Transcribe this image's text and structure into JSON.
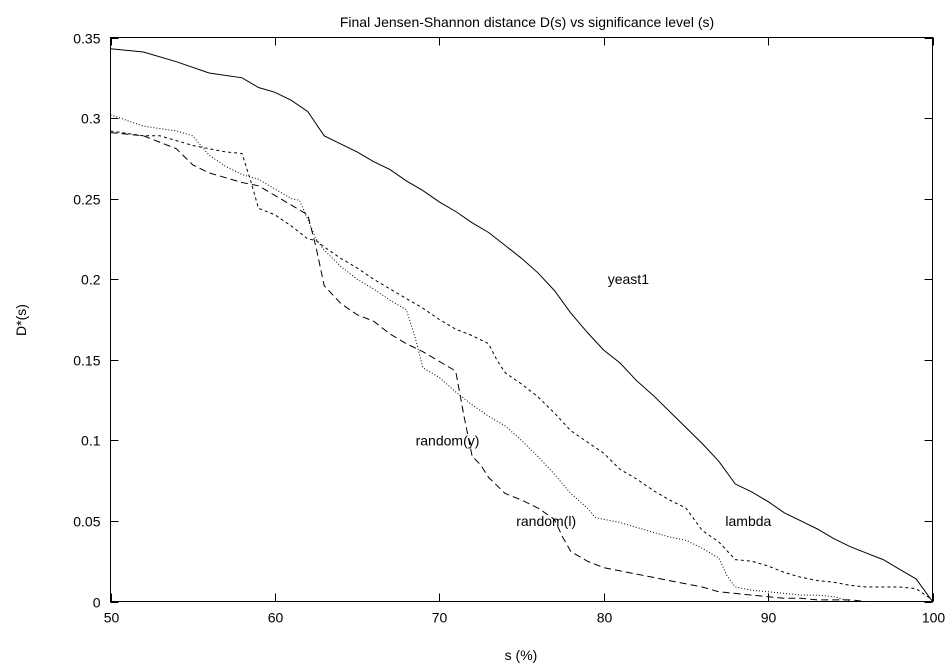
{
  "chart_data": {
    "type": "line",
    "title": "Final Jensen-Shannon distance D(s) vs significance level (s)",
    "xlabel": "s (%)",
    "ylabel": "D*(s)",
    "xlim": [
      50,
      100
    ],
    "ylim": [
      0,
      0.35
    ],
    "xticks": [
      50,
      60,
      70,
      80,
      90,
      100
    ],
    "yticks": [
      0,
      0.05,
      0.1,
      0.15,
      0.2,
      0.25,
      0.3,
      0.35
    ],
    "xtick_labels": [
      "50",
      "60",
      "70",
      "80",
      "90",
      "100"
    ],
    "ytick_labels": [
      "0",
      "0.05",
      "0.1",
      "0.15",
      "0.2",
      "0.25",
      "0.3",
      "0.35"
    ],
    "grid": false,
    "legend": "none",
    "series": [
      {
        "name": "yeast1",
        "dash": "solid",
        "label_at": [
          81.5,
          0.2
        ],
        "x": [
          50,
          52,
          54,
          56,
          58,
          59,
          60,
          61,
          62,
          63,
          64,
          65,
          66,
          67,
          68,
          69,
          70,
          71,
          72,
          73,
          74,
          75,
          76,
          77,
          78,
          79,
          80,
          81,
          82,
          83,
          84,
          85,
          86,
          87,
          88,
          89,
          90,
          91,
          92,
          93,
          94,
          95,
          96,
          97,
          98,
          99,
          100
        ],
        "y": [
          0.343,
          0.341,
          0.335,
          0.328,
          0.325,
          0.319,
          0.316,
          0.311,
          0.304,
          0.289,
          0.284,
          0.279,
          0.273,
          0.268,
          0.261,
          0.255,
          0.248,
          0.242,
          0.235,
          0.229,
          0.221,
          0.213,
          0.204,
          0.193,
          0.179,
          0.167,
          0.156,
          0.148,
          0.137,
          0.128,
          0.118,
          0.108,
          0.098,
          0.087,
          0.073,
          0.068,
          0.062,
          0.055,
          0.05,
          0.045,
          0.039,
          0.034,
          0.03,
          0.026,
          0.02,
          0.014,
          0.0
        ]
      },
      {
        "name": "lambda",
        "dash": "short",
        "label_at": [
          88.8,
          0.05
        ],
        "x": [
          50,
          52,
          53,
          54,
          55,
          56,
          57,
          58,
          58.5,
          59,
          60,
          61,
          62,
          62.5,
          63,
          64,
          65,
          66,
          67,
          68,
          69,
          70,
          71,
          72,
          73,
          73.5,
          74,
          75,
          76,
          77,
          78,
          79,
          80,
          81,
          82,
          83,
          84,
          85,
          86,
          87,
          88,
          89,
          90,
          91,
          92,
          93,
          94,
          95,
          96,
          97,
          98,
          99,
          100
        ],
        "y": [
          0.292,
          0.289,
          0.289,
          0.286,
          0.283,
          0.281,
          0.279,
          0.278,
          0.262,
          0.244,
          0.24,
          0.233,
          0.225,
          0.224,
          0.22,
          0.213,
          0.207,
          0.2,
          0.194,
          0.188,
          0.182,
          0.175,
          0.169,
          0.165,
          0.16,
          0.15,
          0.142,
          0.135,
          0.127,
          0.117,
          0.106,
          0.099,
          0.092,
          0.082,
          0.076,
          0.069,
          0.063,
          0.058,
          0.044,
          0.037,
          0.026,
          0.025,
          0.022,
          0.018,
          0.015,
          0.013,
          0.012,
          0.01,
          0.009,
          0.009,
          0.009,
          0.008,
          0.001
        ]
      },
      {
        "name": "random(y)",
        "dash": "dot",
        "label_at": [
          70.5,
          0.1
        ],
        "x": [
          50,
          52,
          54,
          55,
          56,
          57,
          58,
          59,
          60,
          61,
          61.5,
          62,
          62.5,
          63,
          64,
          65,
          66,
          67,
          68,
          68.5,
          69,
          70,
          71,
          72,
          73,
          74,
          75,
          76,
          77,
          78,
          79,
          79.5,
          80,
          81,
          82,
          83,
          84,
          85,
          86,
          87,
          87.5,
          88,
          89,
          90,
          91,
          92,
          93,
          94,
          95,
          96,
          97,
          98,
          99,
          100
        ],
        "y": [
          0.302,
          0.295,
          0.292,
          0.289,
          0.277,
          0.27,
          0.265,
          0.262,
          0.256,
          0.25,
          0.249,
          0.237,
          0.225,
          0.218,
          0.208,
          0.2,
          0.194,
          0.187,
          0.181,
          0.165,
          0.145,
          0.139,
          0.13,
          0.122,
          0.115,
          0.109,
          0.1,
          0.09,
          0.079,
          0.067,
          0.058,
          0.052,
          0.051,
          0.049,
          0.046,
          0.043,
          0.04,
          0.038,
          0.033,
          0.027,
          0.016,
          0.009,
          0.007,
          0.006,
          0.005,
          0.004,
          0.004,
          0.003,
          0.0,
          0.0,
          0.0,
          0.0,
          0.0,
          0.0
        ]
      },
      {
        "name": "random(l)",
        "dash": "long",
        "label_at": [
          76.5,
          0.05
        ],
        "x": [
          50,
          52,
          54,
          55,
          56,
          57,
          58,
          59,
          60,
          61,
          62,
          62.5,
          63,
          64,
          65,
          66,
          67,
          68,
          69,
          70,
          70.5,
          71,
          71.5,
          72,
          72.5,
          73,
          74,
          75,
          76,
          77,
          77.5,
          78,
          79,
          80,
          81,
          82,
          83,
          84,
          85,
          86,
          87,
          88,
          89,
          90,
          91,
          92,
          93,
          94,
          95,
          96,
          97,
          98,
          99,
          100
        ],
        "y": [
          0.291,
          0.289,
          0.281,
          0.271,
          0.266,
          0.263,
          0.26,
          0.258,
          0.252,
          0.246,
          0.24,
          0.22,
          0.196,
          0.185,
          0.178,
          0.174,
          0.166,
          0.16,
          0.155,
          0.149,
          0.146,
          0.143,
          0.115,
          0.09,
          0.085,
          0.077,
          0.067,
          0.063,
          0.058,
          0.051,
          0.04,
          0.031,
          0.025,
          0.021,
          0.019,
          0.017,
          0.015,
          0.013,
          0.011,
          0.009,
          0.006,
          0.005,
          0.004,
          0.003,
          0.002,
          0.002,
          0.001,
          0.001,
          0.001,
          0.0,
          0.0,
          0.0,
          0.0,
          0.0
        ]
      }
    ]
  }
}
